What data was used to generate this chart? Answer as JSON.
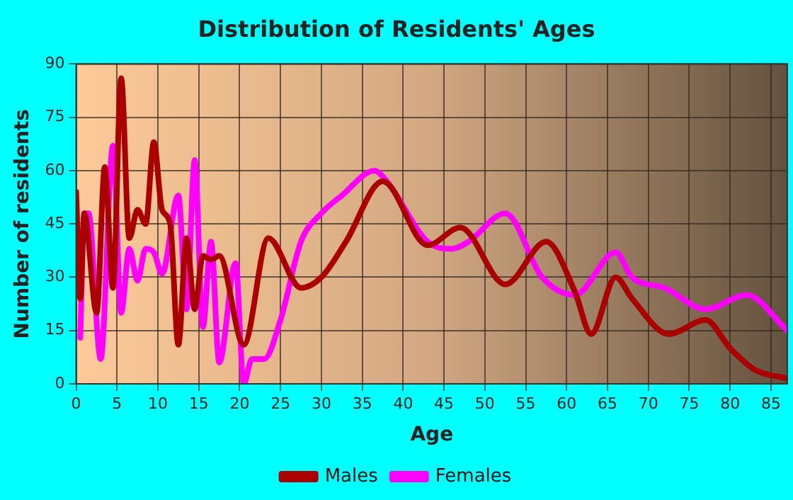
{
  "chart_data": {
    "type": "line",
    "title": "Distribution of Residents' Ages",
    "xlabel": "Age",
    "ylabel": "Number of residents",
    "xlim": [
      0,
      87
    ],
    "xticks": [
      0,
      5,
      10,
      15,
      20,
      25,
      30,
      35,
      40,
      45,
      50,
      55,
      60,
      65,
      70,
      75,
      80,
      85
    ],
    "ylim": [
      0,
      90
    ],
    "yticks": [
      0,
      15,
      30,
      45,
      60,
      75,
      90
    ],
    "grid": true,
    "legend": "bottom",
    "marker": "none",
    "line_style": "solid",
    "series": [
      {
        "name": "Males",
        "color": "#aa0000",
        "x": [
          0,
          0.5,
          1,
          2.5,
          3.5,
          4.5,
          5.5,
          6.5,
          7.5,
          8.5,
          9.5,
          10.5,
          11.5,
          12.5,
          13.5,
          14.5,
          15.5,
          16.5,
          17.5,
          20.5,
          23.5,
          27.5,
          30,
          33,
          37.5,
          43,
          47,
          52.5,
          57.5,
          61,
          63,
          66,
          68,
          72.5,
          77,
          80,
          83,
          87
        ],
        "values": [
          54,
          24,
          48,
          20,
          61,
          27,
          86,
          41,
          49,
          45,
          68,
          49,
          45,
          11,
          41,
          21,
          36,
          35,
          36,
          11,
          41,
          27,
          30,
          40,
          57,
          39,
          44,
          28,
          40,
          26,
          14,
          30,
          24,
          14,
          18,
          10,
          4,
          1.5
        ]
      },
      {
        "name": "Females",
        "color": "#ff00ff",
        "x": [
          0.5,
          1,
          1.5,
          3,
          4.5,
          5.5,
          6.5,
          7.5,
          8.5,
          9.5,
          10.5,
          12.5,
          13.5,
          14.5,
          15.5,
          16.5,
          17.5,
          19.5,
          20.5,
          21.5,
          23,
          25,
          27.5,
          30,
          32.5,
          36.5,
          38,
          43,
          46,
          48,
          52.5,
          57,
          61,
          66,
          68,
          72,
          77,
          82,
          87
        ],
        "values": [
          13,
          48,
          48,
          7,
          67,
          20,
          38,
          29,
          38,
          37,
          31,
          53,
          21,
          63,
          16,
          40,
          6,
          34,
          0,
          7,
          7,
          18,
          40,
          48,
          53,
          60,
          57,
          40,
          38,
          40,
          48,
          30,
          25,
          37,
          30,
          27,
          21,
          25,
          15
        ]
      }
    ]
  }
}
